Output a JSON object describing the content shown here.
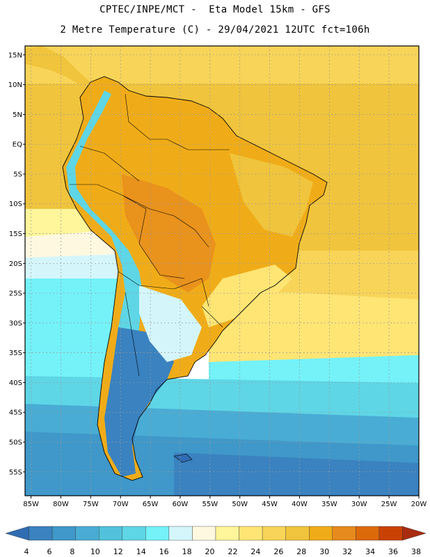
{
  "header": {
    "line1": "CPTEC/INPE/MCT -  Eta Model 15km - GFS",
    "line2": "2 Metre Temperature (C) - 29/04/2021 12UTC fct=106h"
  },
  "map": {
    "lat_labels": [
      "15N",
      "10N",
      "5N",
      "EQ",
      "5S",
      "10S",
      "15S",
      "20S",
      "25S",
      "30S",
      "35S",
      "40S",
      "45S",
      "50S",
      "55S"
    ],
    "lat_values": [
      15,
      10,
      5,
      0,
      -5,
      -10,
      -15,
      -20,
      -25,
      -30,
      -35,
      -40,
      -45,
      -50,
      -55
    ],
    "lon_labels": [
      "85W",
      "80W",
      "75W",
      "70W",
      "65W",
      "60W",
      "55W",
      "50W",
      "45W",
      "40W",
      "35W",
      "30W",
      "25W",
      "20W"
    ],
    "lon_values": [
      -85,
      -80,
      -75,
      -70,
      -65,
      -60,
      -55,
      -50,
      -45,
      -40,
      -35,
      -30,
      -25,
      -20
    ],
    "lon_range": [
      -86,
      -20
    ],
    "lat_range": [
      -59,
      16.5
    ]
  },
  "colorbar": {
    "labels": [
      "4",
      "6",
      "8",
      "10",
      "12",
      "14",
      "16",
      "18",
      "20",
      "22",
      "24",
      "26",
      "28",
      "30",
      "32",
      "34",
      "36",
      "38"
    ],
    "colors": [
      "#2f6cb2",
      "#3a82c0",
      "#3f98c9",
      "#49acd4",
      "#52c2dc",
      "#5ed6e6",
      "#74f2f8",
      "#d4f6fb",
      "#fff8e0",
      "#fff59a",
      "#ffe574",
      "#f8d458",
      "#f0c43c",
      "#f0ac18",
      "#e78a1e",
      "#dd6a0a",
      "#c94204",
      "#a82c10"
    ]
  }
}
